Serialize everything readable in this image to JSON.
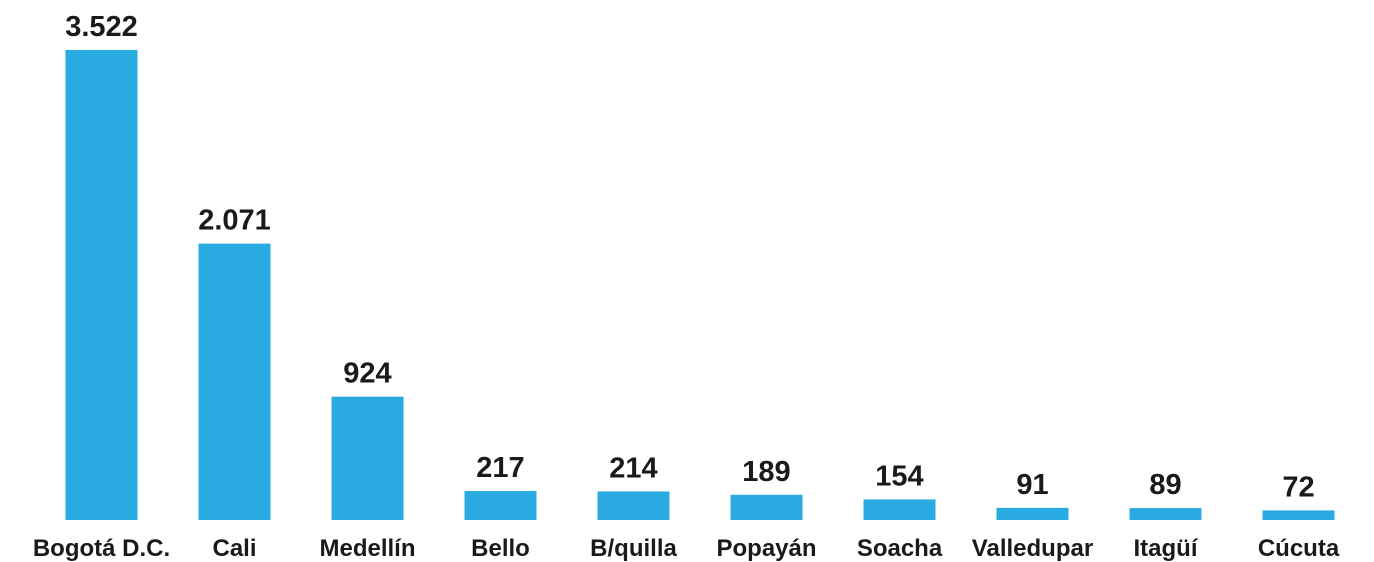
{
  "chart_data": {
    "type": "bar",
    "categories": [
      "Bogotá D.C.",
      "Cali",
      "Medellín",
      "Bello",
      "B/quilla",
      "Popayán",
      "Soacha",
      "Valledupar",
      "Itagüí",
      "Cúcuta"
    ],
    "values": [
      3522,
      2071,
      924,
      217,
      214,
      189,
      154,
      91,
      89,
      72
    ],
    "value_labels": [
      "3.522",
      "2.071",
      "924",
      "217",
      "214",
      "189",
      "154",
      "91",
      "89",
      "72"
    ],
    "color": "#29abe2"
  }
}
